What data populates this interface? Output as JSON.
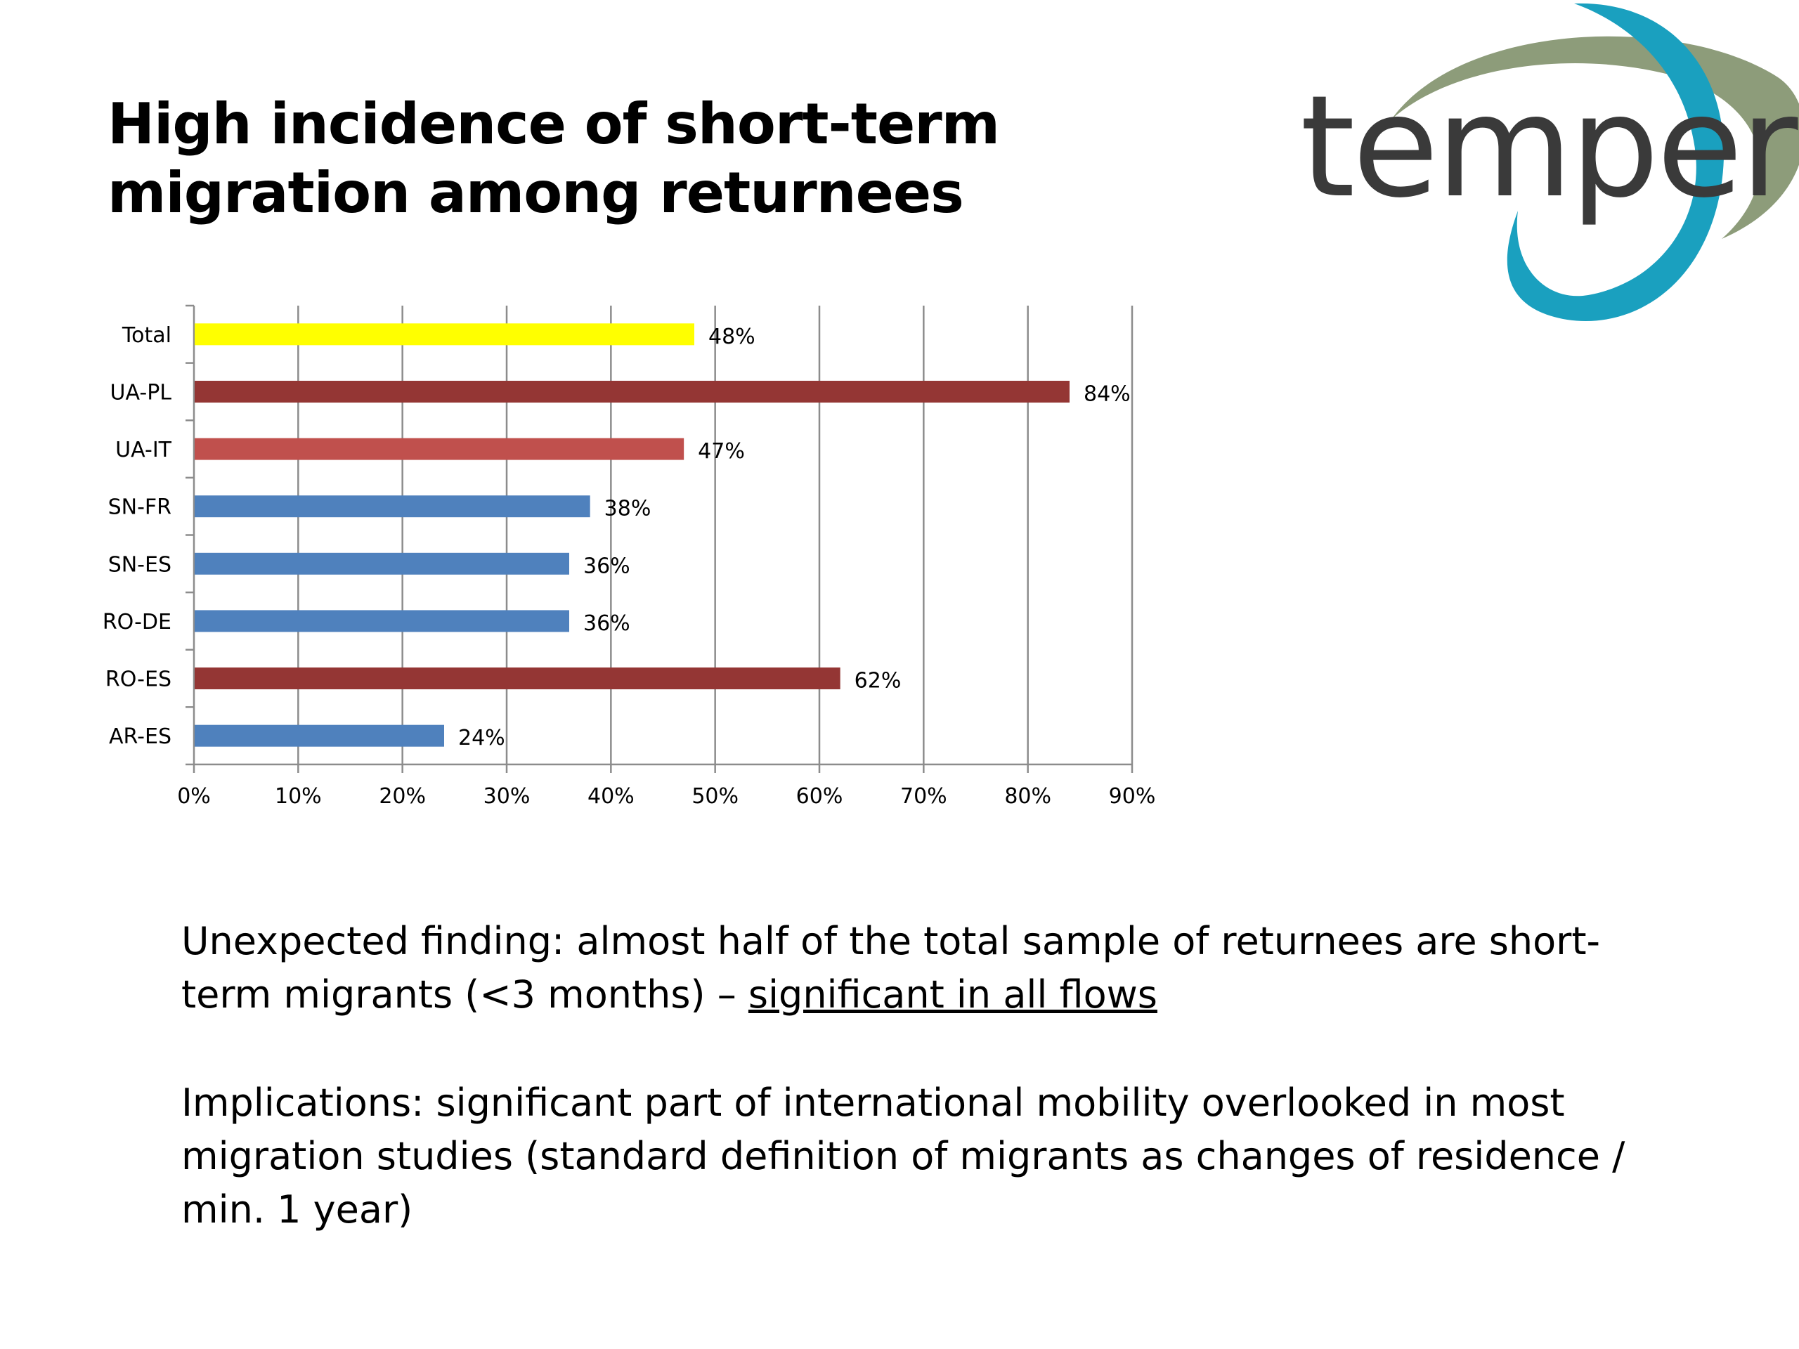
{
  "slide": {
    "title": "High incidence of short-term migration among returnees",
    "logo_text": "temper"
  },
  "chart_data": {
    "type": "bar",
    "orientation": "horizontal",
    "categories": [
      "Total",
      "UA-PL",
      "UA-IT",
      "SN-FR",
      "SN-ES",
      "RO-DE",
      "RO-ES",
      "AR-ES"
    ],
    "values": [
      48,
      84,
      47,
      38,
      36,
      36,
      62,
      24
    ],
    "data_labels": [
      "48%",
      "84%",
      "47%",
      "38%",
      "36%",
      "36%",
      "62%",
      "24%"
    ],
    "colors": [
      "#ffff00",
      "#943634",
      "#c0504d",
      "#4f81bd",
      "#4f81bd",
      "#4f81bd",
      "#943634",
      "#4f81bd"
    ],
    "xlim": [
      0,
      90
    ],
    "x_ticks": [
      0,
      10,
      20,
      30,
      40,
      50,
      60,
      70,
      80,
      90
    ],
    "x_tick_labels": [
      "0%",
      "10%",
      "20%",
      "30%",
      "40%",
      "50%",
      "60%",
      "70%",
      "80%",
      "90%"
    ],
    "grid": true,
    "legend": "none"
  },
  "text": {
    "finding_lead": "Unexpected finding:  almost half of the total sample of returnees are short-term migrants (<3 months) – ",
    "finding_emphasis": "significant in all flows",
    "implications": "Implications: significant part of international mobility overlooked in most migration studies (standard definition of migrants as changes of residence / min. 1 year)"
  },
  "colors": {
    "logo_teal": "#1aa0bf",
    "logo_olive": "#8d9c7a",
    "logo_text": "#3a3a3a",
    "gridline": "#8c8c8c"
  }
}
